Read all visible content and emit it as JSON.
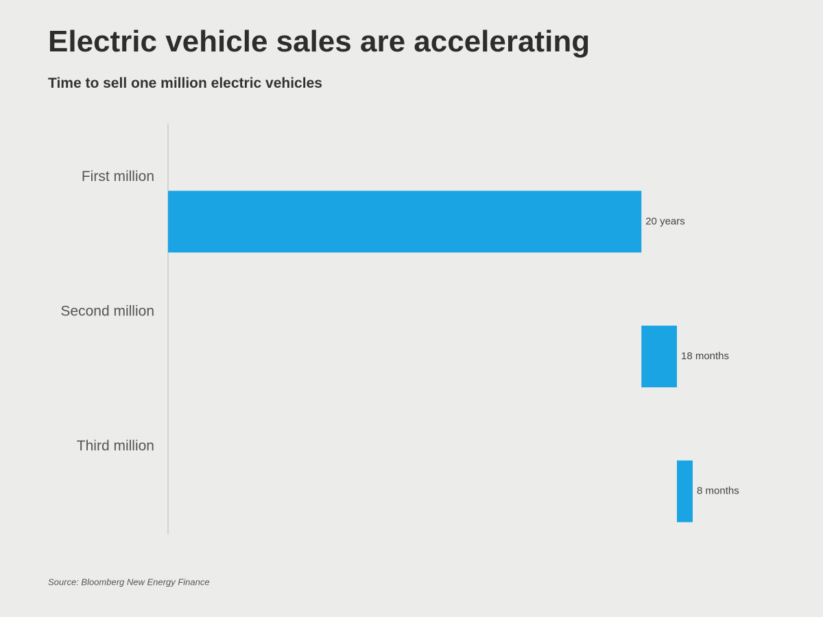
{
  "chart_data": {
    "type": "waterfall",
    "title": "Electric vehicle sales are accelerating",
    "subtitle": "Time to sell one million electric vehicles",
    "categories": [
      "First million",
      "Second million",
      "Third million"
    ],
    "values": [
      240,
      18,
      8
    ],
    "value_labels": [
      "20 years",
      "18 months",
      "8 months"
    ],
    "color": "#1ba4e3",
    "source": "Source: Bloomberg New Energy Finance"
  }
}
